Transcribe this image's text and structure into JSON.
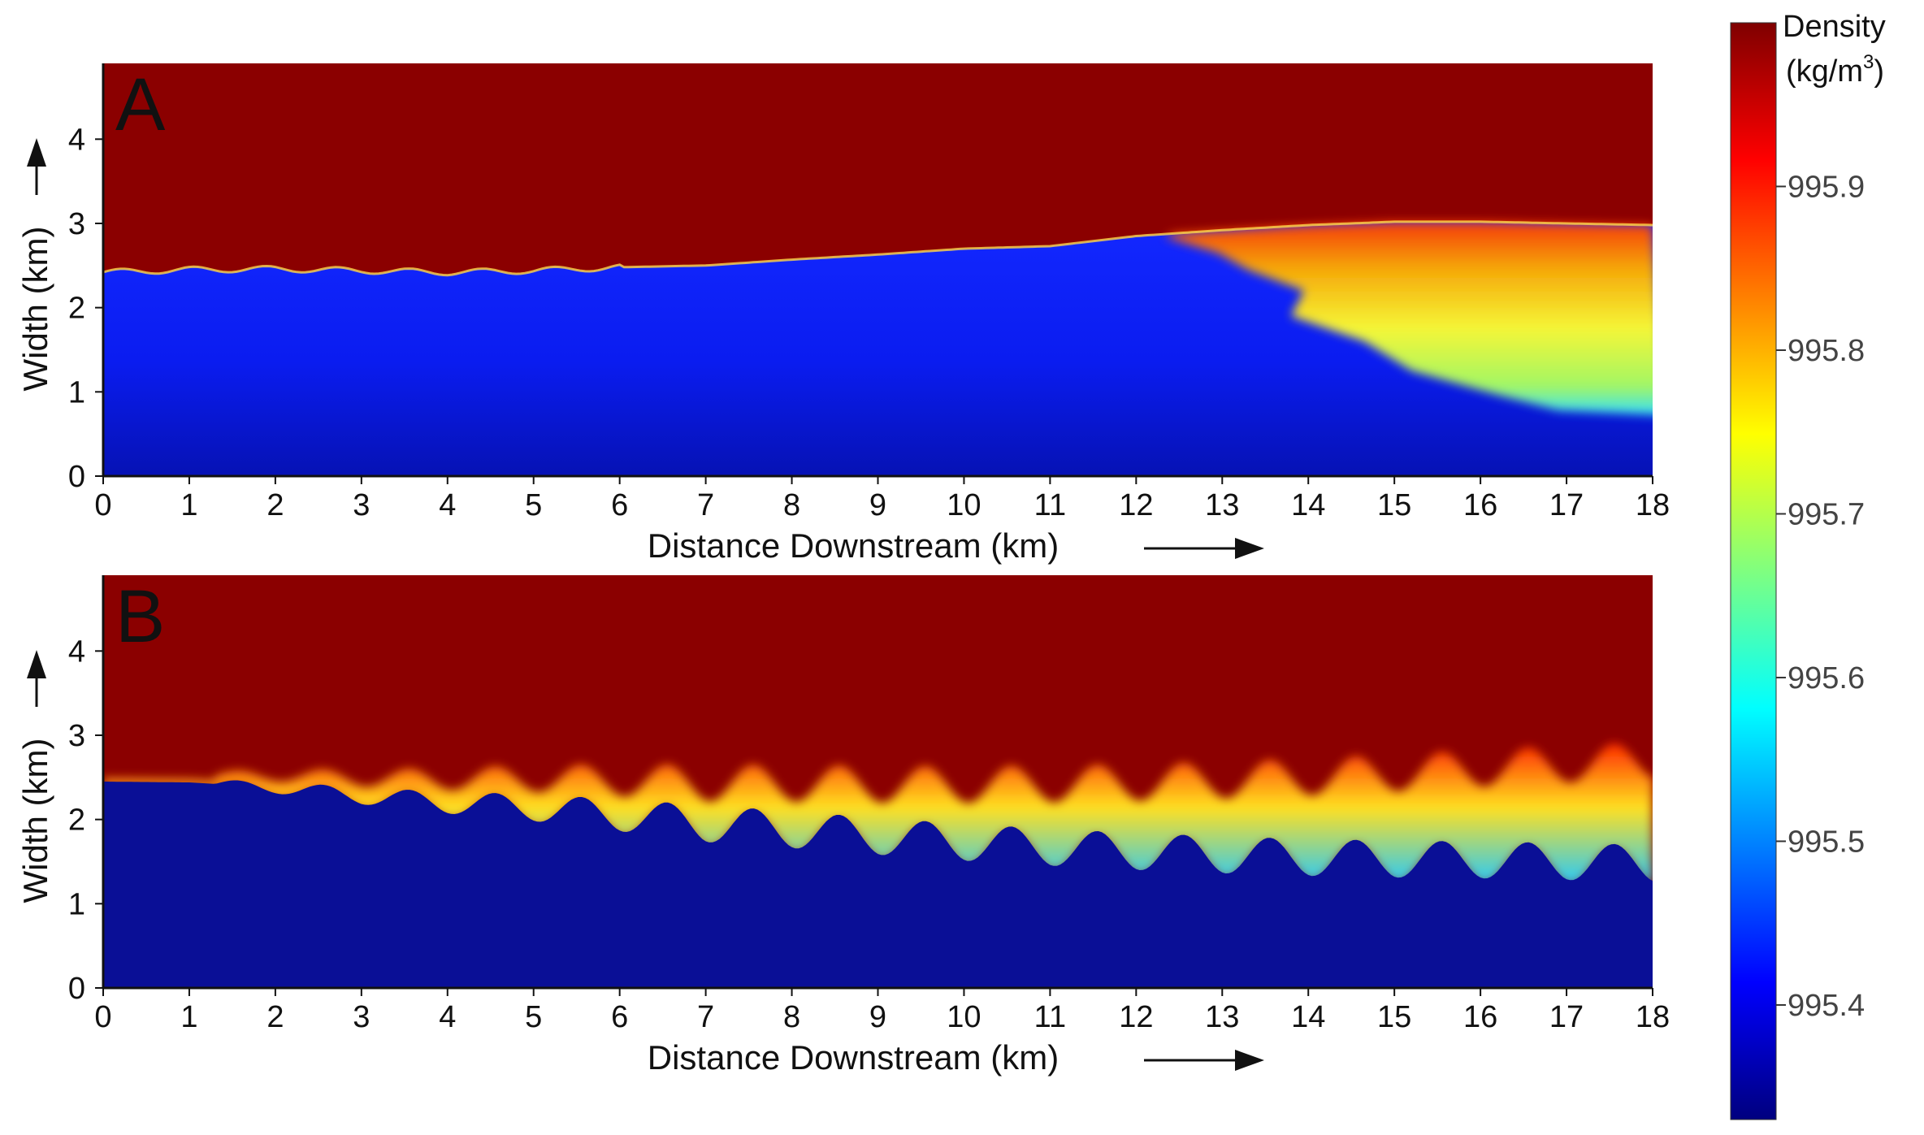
{
  "chart_data": [
    {
      "type": "heatmap",
      "panel_label": "A",
      "xlabel": "Distance Downstream (km)",
      "ylabel": "Width (km)",
      "xlim": [
        0,
        18
      ],
      "ylim": [
        0,
        4.9
      ],
      "xticks": [
        0,
        1,
        2,
        3,
        4,
        5,
        6,
        7,
        8,
        9,
        10,
        11,
        12,
        13,
        14,
        15,
        16,
        17,
        18
      ],
      "yticks": [
        0,
        1,
        2,
        3,
        4
      ],
      "interface_y_km": [
        [
          0,
          2.42
        ],
        [
          1,
          2.45
        ],
        [
          2,
          2.46
        ],
        [
          3,
          2.44
        ],
        [
          4,
          2.42
        ],
        [
          5,
          2.44
        ],
        [
          6,
          2.48
        ],
        [
          7,
          2.5
        ],
        [
          8,
          2.57
        ],
        [
          9,
          2.63
        ],
        [
          10,
          2.7
        ],
        [
          11,
          2.73
        ],
        [
          12,
          2.85
        ],
        [
          13,
          2.92
        ],
        [
          14,
          2.98
        ],
        [
          15,
          3.02
        ],
        [
          16,
          3.02
        ],
        [
          17,
          3.0
        ],
        [
          18,
          2.98
        ]
      ],
      "mixing_front_km": [
        [
          12.4,
          2.85
        ],
        [
          12.8,
          2.65
        ],
        [
          13.4,
          2.45
        ],
        [
          13.8,
          2.2
        ],
        [
          13.9,
          1.9
        ],
        [
          14.5,
          1.6
        ],
        [
          15.3,
          1.25
        ],
        [
          16.1,
          0.95
        ],
        [
          17,
          0.78
        ],
        [
          18,
          0.72
        ]
      ]
    },
    {
      "type": "heatmap",
      "panel_label": "B",
      "xlabel": "Distance Downstream (km)",
      "ylabel": "Width (km)",
      "xlim": [
        0,
        18
      ],
      "ylim": [
        0,
        4.9
      ],
      "xticks": [
        0,
        1,
        2,
        3,
        4,
        5,
        6,
        7,
        8,
        9,
        10,
        11,
        12,
        13,
        14,
        15,
        16,
        17,
        18
      ],
      "yticks": [
        0,
        1,
        2,
        3,
        4
      ],
      "interface_y_km": [
        [
          0,
          2.45
        ],
        [
          1,
          2.44
        ],
        [
          2,
          2.38
        ],
        [
          3,
          2.28
        ],
        [
          4,
          2.2
        ],
        [
          5,
          2.14
        ],
        [
          6,
          2.05
        ],
        [
          7,
          1.95
        ],
        [
          8,
          1.88
        ],
        [
          9,
          1.8
        ],
        [
          10,
          1.73
        ],
        [
          11,
          1.67
        ],
        [
          12,
          1.62
        ],
        [
          13,
          1.58
        ],
        [
          14,
          1.55
        ],
        [
          15,
          1.53
        ],
        [
          16,
          1.52
        ],
        [
          17,
          1.5
        ],
        [
          18,
          1.48
        ]
      ]
    }
  ],
  "colorbar": {
    "title_line1": "Density",
    "title_line2": "(kg/m",
    "title_sup": "3",
    "title_close": ")",
    "vmin": 995.33,
    "vmax": 996.0,
    "ticks": [
      {
        "value": 995.9,
        "label": "995.9"
      },
      {
        "value": 995.8,
        "label": "995.8"
      },
      {
        "value": 995.7,
        "label": "995.7"
      },
      {
        "value": 995.6,
        "label": "995.6"
      },
      {
        "value": 995.5,
        "label": "995.5"
      },
      {
        "value": 995.4,
        "label": "995.4"
      }
    ],
    "colormap": "jet"
  },
  "colors": {
    "high_density": "#8b0000",
    "low_density_a": "#0a1ef0",
    "low_density_b": "#0a0f96",
    "axis": "#111111"
  }
}
